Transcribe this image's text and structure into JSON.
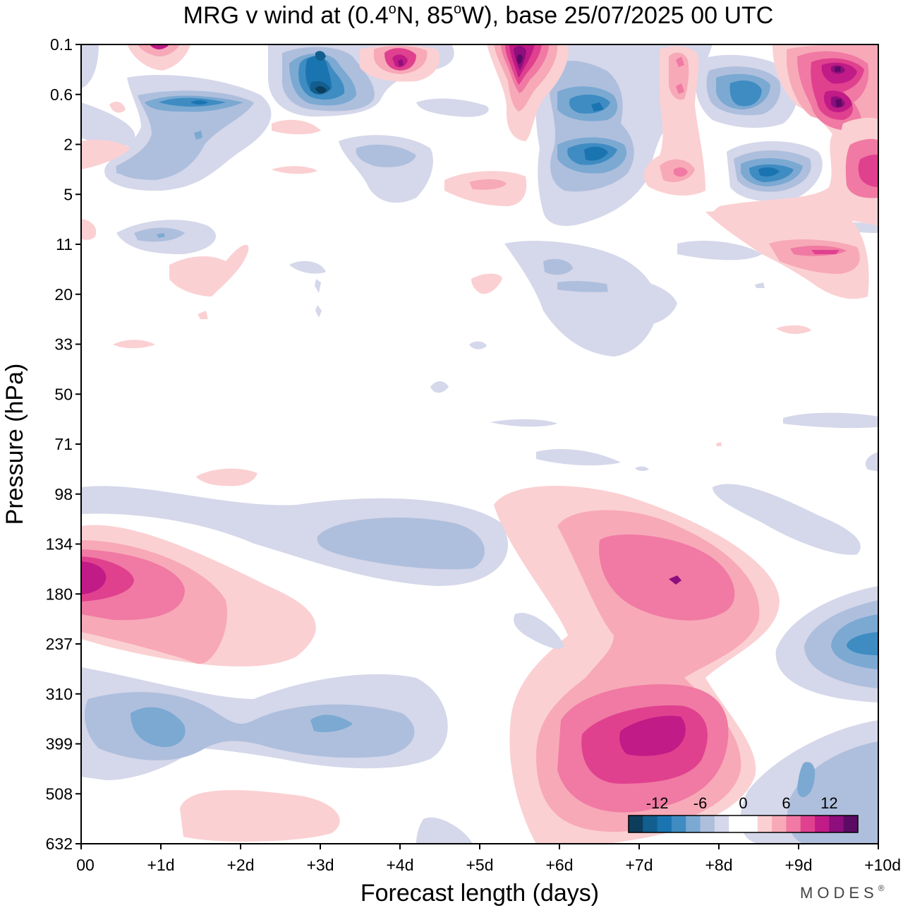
{
  "chart_data": {
    "type": "heatmap",
    "title": "MRG v wind at (0.4°N, 85°W),  base 25/07/2025  00 UTC",
    "title_parts": {
      "prefix": "MRG v wind at (0.4",
      "deg1": "o",
      "mid": "N, 85",
      "deg2": "o",
      "suffix": "W),  base 25/07/2025  00 UTC"
    },
    "xlabel": "Forecast length (days)",
    "ylabel": "Pressure (hPa)",
    "x_ticks": [
      "00",
      "+1d",
      "+2d",
      "+3d",
      "+4d",
      "+5d",
      "+6d",
      "+7d",
      "+8d",
      "+9d",
      "+10d"
    ],
    "xlim": [
      0,
      10
    ],
    "y_ticks": [
      "0.1",
      "0.6",
      "2",
      "5",
      "11",
      "20",
      "33",
      "50",
      "71",
      "98",
      "134",
      "180",
      "237",
      "310",
      "399",
      "508",
      "632"
    ],
    "colorbar": {
      "tick_labels": [
        "-12",
        "-6",
        "0",
        "6",
        "12"
      ],
      "tick_values": [
        -12,
        -6,
        0,
        6,
        12
      ],
      "range": [
        -16,
        16
      ],
      "colors": [
        "#0d3d5c",
        "#125e8f",
        "#1a74b0",
        "#3e8cc2",
        "#7ba9d2",
        "#aebfdd",
        "#d5d7ea",
        "#ffffff",
        "#ffffff",
        "#fbd0d2",
        "#f7a9b8",
        "#f07aa3",
        "#e0418f",
        "#c01b86",
        "#8d0e7c",
        "#5b0b63"
      ]
    },
    "features": [
      {
        "sign": "positive",
        "peak": 14,
        "x": 0.2,
        "y_level": "180",
        "desc": "strong pink maximum at initial time"
      },
      {
        "sign": "positive",
        "peak": 12,
        "x": 7.2,
        "y_level": "399",
        "desc": "pink maximum in upper troposphere"
      },
      {
        "sign": "positive",
        "peak": 9,
        "x": 7.5,
        "y_level": "180",
        "desc": "pink maximum near tropopause"
      },
      {
        "sign": "negative",
        "peak": -8,
        "x": 1.0,
        "y_level": "310",
        "desc": "blue minimum"
      },
      {
        "sign": "negative",
        "peak": -7,
        "x": 3.0,
        "y_level": "310",
        "desc": "blue minimum"
      },
      {
        "sign": "negative",
        "peak": -7,
        "x": 3.0,
        "y_level": "134",
        "desc": "blue minimum"
      },
      {
        "sign": "negative",
        "peak": -9,
        "x": 10.0,
        "y_level": "237",
        "desc": "blue minimum at end of forecast"
      },
      {
        "sign": "negative",
        "peak": -14,
        "x": 3.0,
        "y_level": "0.6",
        "desc": "dark blue minimum in stratosphere"
      },
      {
        "sign": "positive",
        "peak": 15,
        "x": 5.5,
        "y_level": "0.1",
        "desc": "dark purple maximum in stratosphere"
      },
      {
        "sign": "positive",
        "peak": 13,
        "x": 4.0,
        "y_level": "0.1",
        "desc": "magenta maximum"
      },
      {
        "sign": "positive",
        "peak": 14,
        "x": 9.5,
        "y_level": "0.6",
        "desc": "purple maxima"
      },
      {
        "sign": "negative",
        "peak": -11,
        "x": 1.5,
        "y_level": "0.6",
        "desc": "blue minimum"
      },
      {
        "sign": "negative",
        "peak": -11,
        "x": 6.5,
        "y_level": "2",
        "desc": "blue minimum"
      },
      {
        "sign": "negative",
        "peak": -10,
        "x": 8.5,
        "y_level": "0.6",
        "desc": "blue minimum"
      },
      {
        "sign": "negative",
        "peak": -11,
        "x": 8.7,
        "y_level": "5",
        "desc": "blue minimum"
      }
    ]
  },
  "branding": {
    "text": "MODES",
    "mark": "®"
  }
}
